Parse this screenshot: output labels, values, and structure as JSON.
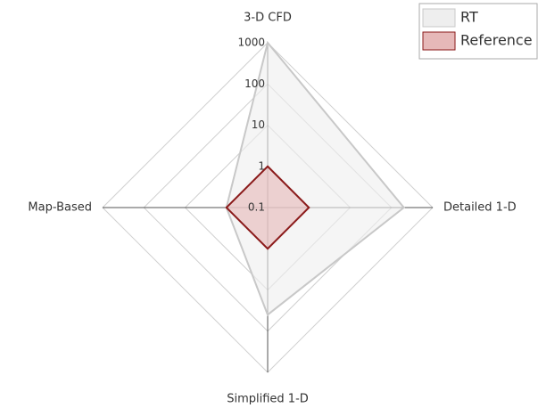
{
  "chart_data": {
    "type": "radar",
    "categories": [
      "3-D CFD",
      "Detailed 1-D",
      "Simplified 1-D",
      "Map-Based"
    ],
    "series": [
      {
        "name": "RT",
        "color": "#c8c8c8",
        "fill": "#eeeeee",
        "values": [
          1000,
          200,
          40,
          1
        ]
      },
      {
        "name": "Reference",
        "color": "#8b1a1a",
        "fill": "#e6b8b8",
        "values": [
          1,
          1,
          1,
          1
        ]
      }
    ],
    "rlim": [
      0.1,
      1000
    ],
    "rticks": [
      0.1,
      1,
      10,
      100,
      1000
    ],
    "log_scale": true,
    "grid": true,
    "legend": "top-right"
  }
}
